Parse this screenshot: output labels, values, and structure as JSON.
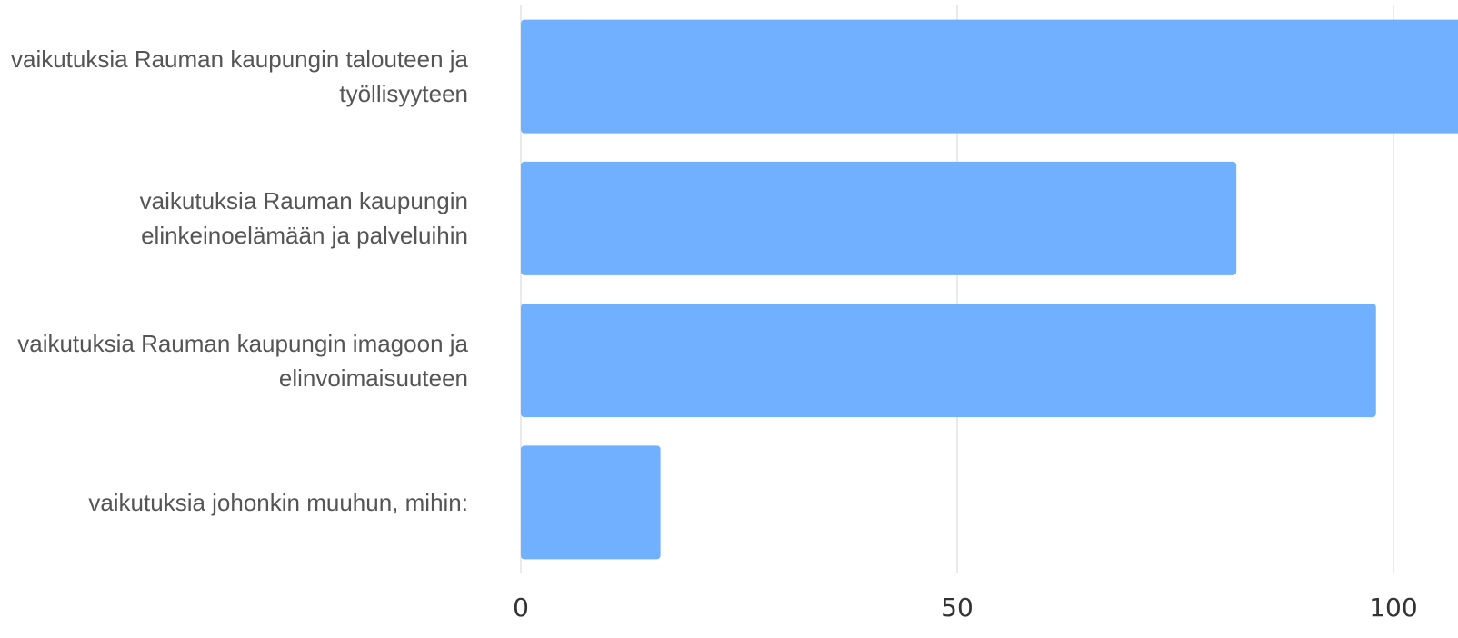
{
  "chart_data": {
    "type": "bar",
    "orientation": "horizontal",
    "categories": [
      "vaikutuksia Rauman kaupungin talouteen ja työllisyyteen",
      "vaikutuksia Rauman kaupungin elinkeinoelämään ja palveluihin",
      "vaikutuksia Rauman kaupungin imagoon ja elinvoimaisuuteen",
      "vaikutuksia johonkin muuhun, mihin:"
    ],
    "values": [
      108,
      82,
      98,
      16
    ],
    "color": "#70b0ff",
    "xlim": [
      0,
      107.4
    ],
    "xticks": [
      0,
      50,
      100
    ],
    "grid": true
  }
}
